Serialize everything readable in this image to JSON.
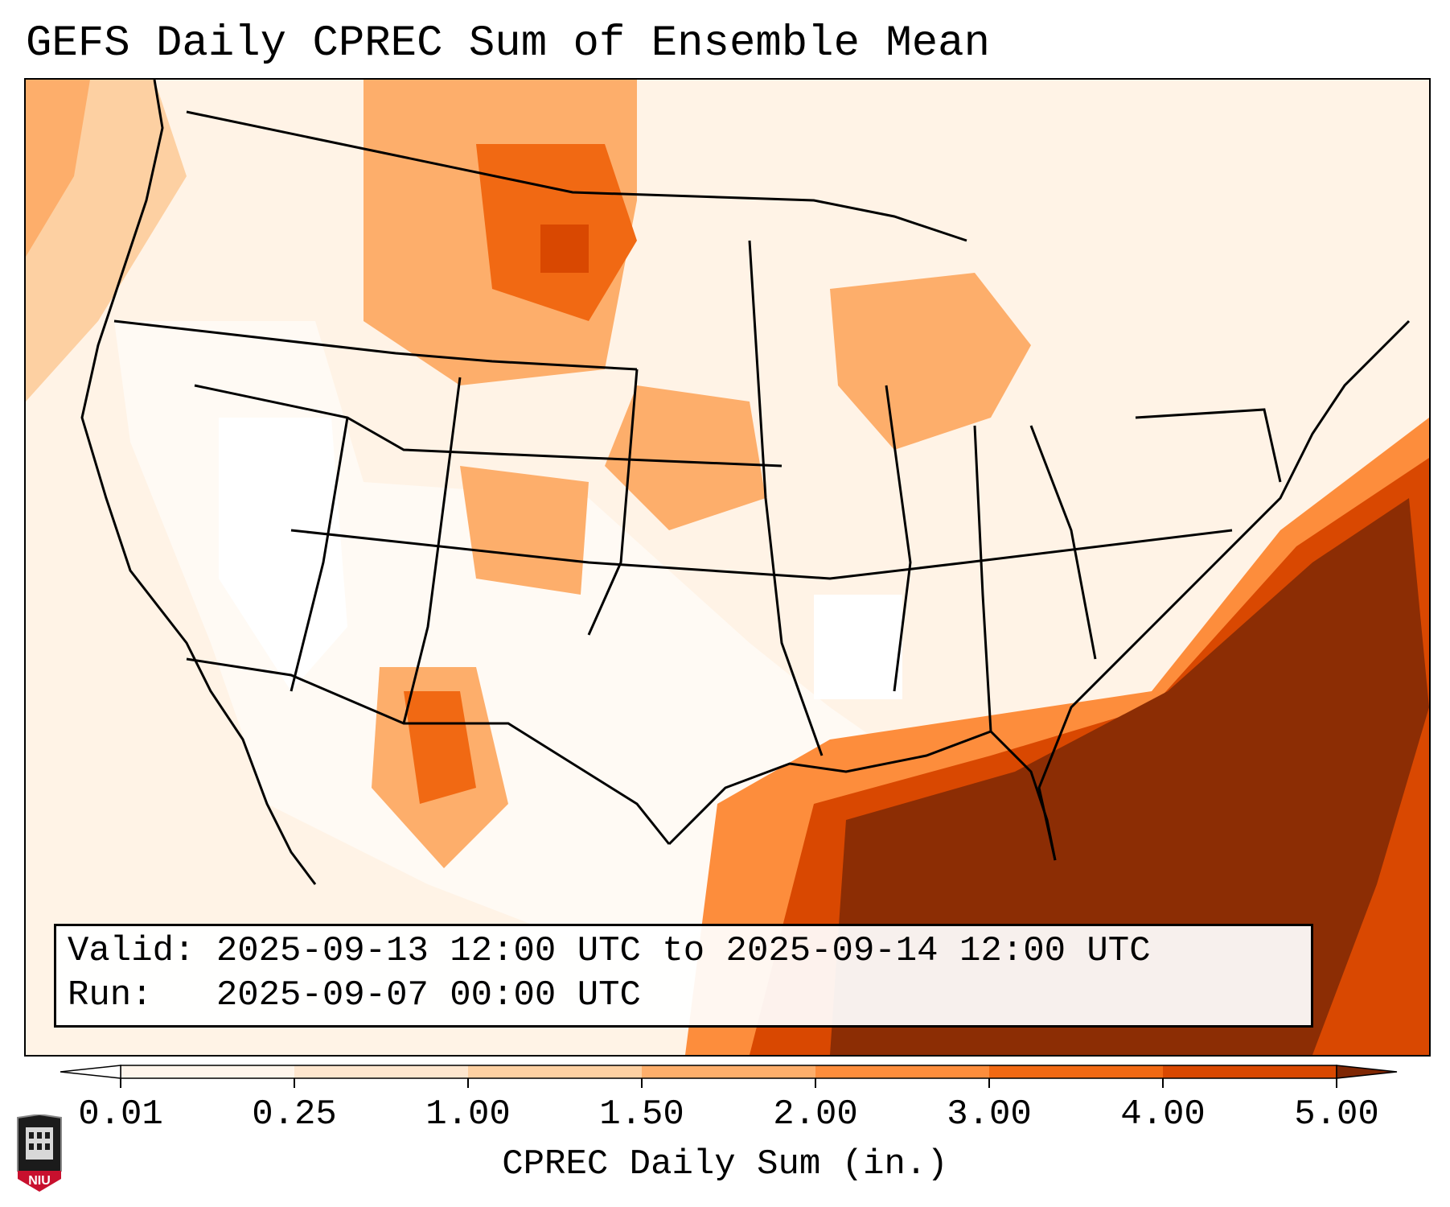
{
  "title": "GEFS Daily CPREC Sum of Ensemble Mean",
  "info": {
    "valid": "Valid: 2025-09-13 12:00 UTC to 2025-09-14 12:00 UTC",
    "run": "Run:   2025-09-07 00:00 UTC"
  },
  "colorbar": {
    "label": "CPREC Daily Sum (in.)",
    "ticks": [
      "0.01",
      "0.25",
      "1.00",
      "1.50",
      "2.00",
      "3.00",
      "4.00",
      "5.00"
    ],
    "colors": [
      "#fff5eb",
      "#fee6ce",
      "#fdd0a2",
      "#fdae6b",
      "#fd8d3c",
      "#f16913",
      "#d94801",
      "#8c2d04"
    ],
    "under_color": "#ffffff",
    "over_color": "#7f2704"
  },
  "logo": {
    "text": "NIU"
  },
  "legend": {
    "valid_label": "Valid:",
    "run_label": "Run:"
  }
}
